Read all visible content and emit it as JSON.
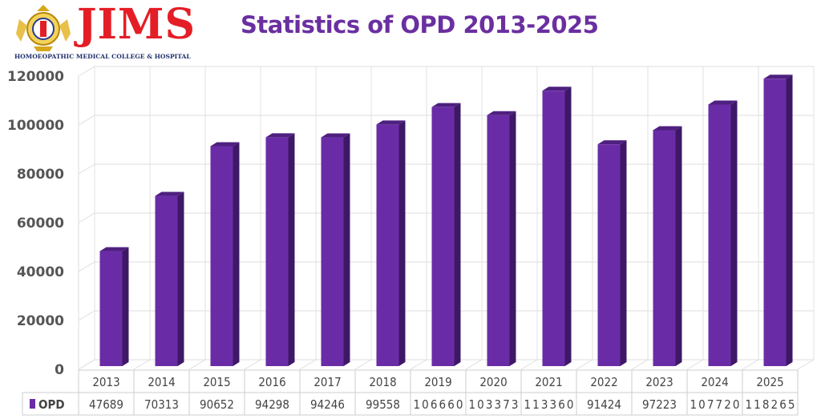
{
  "logo": {
    "wordmark": "JIMS",
    "subtitle": "HOMOEOPATHIC MEDICAL COLLEGE & HOSPITAL"
  },
  "chart_data": {
    "type": "bar",
    "title": "Statistics of OPD 2013-2025",
    "categories": [
      "2013",
      "2014",
      "2015",
      "2016",
      "2017",
      "2018",
      "2019",
      "2020",
      "2021",
      "2022",
      "2023",
      "2024",
      "2025"
    ],
    "series": [
      {
        "name": "OPD",
        "values": [
          47689,
          70313,
          90652,
          94298,
          94246,
          99558,
          106660,
          103373,
          113360,
          91424,
          97223,
          107720,
          118265
        ],
        "color": "#6a2ca6"
      }
    ],
    "yticks": [
      0,
      20000,
      40000,
      60000,
      80000,
      100000,
      120000
    ],
    "ylim": [
      0,
      120000
    ],
    "grid": true,
    "legend": "data-table-left",
    "style": "3d-column"
  }
}
